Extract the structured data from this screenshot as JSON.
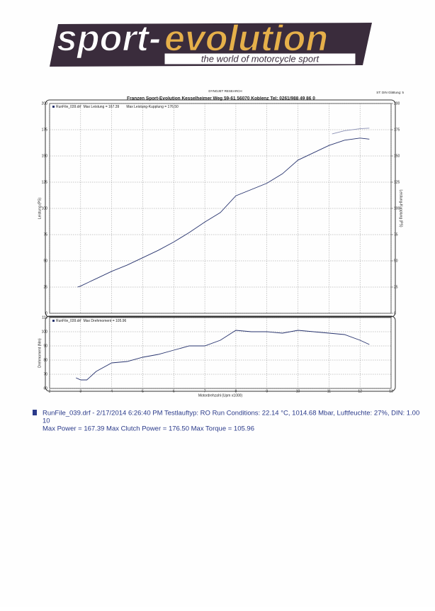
{
  "header": {
    "logo_left": "sport-",
    "logo_right": "evolution",
    "tagline": "the world of motorcycle sport",
    "top_center": "DYNOJET RESEARCH",
    "company_line": "Franzen Sport-Evolution   Kesselheimer Weg 59-61   56070 Koblenz   Tel: 0261/988 49 86 0",
    "top_right": "ST: DIN  Glättung: 5"
  },
  "chart_data": [
    {
      "type": "line",
      "ylabel": "Leistung (PS)",
      "y2label": "Leistung-Kupplung (PS)",
      "legend": [
        "Max Leistung = 167.39",
        "Max Leistung-Kupplung = 176.50"
      ],
      "xlim": [
        2,
        13
      ],
      "xticks": [
        2,
        3,
        4,
        5,
        6,
        7,
        8,
        9,
        10,
        11,
        12,
        13
      ],
      "ylim": [
        0,
        200
      ],
      "yticks": [
        0,
        25,
        50,
        75,
        100,
        125,
        150,
        175,
        200
      ],
      "y2lim": [
        0,
        200
      ],
      "y2ticks": [
        0,
        25,
        50,
        75,
        100,
        125,
        150,
        175,
        200
      ],
      "grid": true,
      "series": [
        {
          "name": "RunFile_039.drf",
          "color": "#27336e",
          "x": [
            2.9,
            3,
            3.5,
            4,
            4.5,
            5,
            5.5,
            6,
            6.5,
            7,
            7.5,
            8,
            8.5,
            9,
            9.5,
            10,
            10.5,
            11,
            11.5,
            12,
            12.3
          ],
          "values": [
            25,
            26,
            33,
            40,
            46,
            53,
            60,
            68,
            77,
            87,
            96,
            112,
            118,
            124,
            133,
            146,
            153,
            160,
            165,
            167,
            166
          ]
        },
        {
          "color": "#8a90b4",
          "axis": "y2",
          "x": [
            11.1,
            11.5,
            12,
            12.3
          ],
          "values": [
            171,
            174,
            176,
            176.5
          ]
        }
      ]
    },
    {
      "type": "line",
      "ylabel": "Drehmoment (Nm)",
      "xlabel": "Motordrehzahl (Upm x1000)",
      "legend": [
        "Max Drehmoment = 105.96"
      ],
      "xlim": [
        2,
        13
      ],
      "xticks": [
        2,
        3,
        4,
        5,
        6,
        7,
        8,
        9,
        10,
        11,
        12,
        13
      ],
      "ylim": [
        60,
        110
      ],
      "yticks": [
        60,
        70,
        80,
        90,
        100,
        110
      ],
      "grid": true,
      "series": [
        {
          "name": "RunFile_039.drf",
          "color": "#27336e",
          "x": [
            2.85,
            3,
            3.2,
            3.5,
            4,
            4.5,
            5,
            5.5,
            6,
            6.5,
            7,
            7.5,
            8,
            8.5,
            9,
            9.5,
            10,
            10.5,
            11,
            11.5,
            12,
            12.3
          ],
          "values": [
            67.5,
            66,
            66,
            72,
            78,
            79,
            82,
            84,
            87,
            90,
            90,
            94,
            101,
            100,
            100,
            99,
            101,
            100,
            99,
            98,
            94,
            91
          ]
        }
      ]
    }
  ],
  "footer": {
    "line1": "RunFile_039.drf - 2/17/2014 6:26:40 PM  Testlauftyp: RO  Run Conditions: 22.14 °C, 1014.68 Mbar,  Luftfeuchte: 27%, DIN: 1.00",
    "line2": "10",
    "line3": "Max Power = 167.39  Max Clutch Power = 176.50  Max Torque = 105.96"
  }
}
